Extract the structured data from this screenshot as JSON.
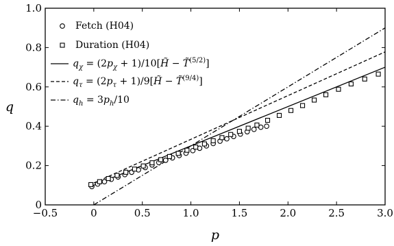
{
  "chart_data": {
    "type": "scatter",
    "title": "",
    "xlabel": "p",
    "ylabel": "q",
    "xlim": [
      -0.5,
      3.0
    ],
    "ylim": [
      0,
      1.0
    ],
    "x_ticks": [
      -0.5,
      0,
      0.5,
      1.0,
      1.5,
      2.0,
      2.5,
      3.0
    ],
    "x_tick_labels": [
      "−0.5",
      "0",
      "0.5",
      "1.0",
      "1.5",
      "2.0",
      "2.5",
      "3.0"
    ],
    "y_ticks": [
      0,
      0.2,
      0.4,
      0.6,
      0.8,
      1.0
    ],
    "y_tick_labels": [
      "0",
      "0.2",
      "0.4",
      "0.6",
      "0.8",
      "1.0"
    ],
    "grid": false,
    "legend_position": "top-left",
    "series": [
      {
        "name": "Fetch (H04)",
        "kind": "marker",
        "marker": "circle",
        "color": "#000000",
        "x": [
          -0.02,
          0.04,
          0.11,
          0.18,
          0.25,
          0.32,
          0.39,
          0.46,
          0.53,
          0.6,
          0.67,
          0.74,
          0.81,
          0.88,
          0.95,
          1.02,
          1.09,
          1.16,
          1.23,
          1.3,
          1.37,
          1.44,
          1.51,
          1.58,
          1.65,
          1.72,
          1.78
        ],
        "y": [
          0.093,
          0.106,
          0.118,
          0.13,
          0.142,
          0.154,
          0.166,
          0.178,
          0.19,
          0.203,
          0.215,
          0.227,
          0.239,
          0.251,
          0.263,
          0.276,
          0.288,
          0.3,
          0.312,
          0.324,
          0.336,
          0.348,
          0.36,
          0.372,
          0.384,
          0.395,
          0.4
        ]
      },
      {
        "name": "Duration (H04)",
        "kind": "marker",
        "marker": "square",
        "color": "#000000",
        "x": [
          -0.03,
          0.06,
          0.15,
          0.24,
          0.33,
          0.42,
          0.51,
          0.6,
          0.69,
          0.78,
          0.87,
          0.96,
          1.05,
          1.14,
          1.23,
          1.32,
          1.41,
          1.5,
          1.59,
          1.68,
          1.79,
          1.91,
          2.03,
          2.15,
          2.27,
          2.39,
          2.52,
          2.65,
          2.79,
          2.93
        ],
        "y": [
          0.103,
          0.118,
          0.134,
          0.15,
          0.166,
          0.182,
          0.198,
          0.214,
          0.23,
          0.246,
          0.262,
          0.278,
          0.294,
          0.31,
          0.326,
          0.342,
          0.358,
          0.374,
          0.39,
          0.406,
          0.43,
          0.455,
          0.48,
          0.505,
          0.533,
          0.56,
          0.588,
          0.615,
          0.64,
          0.665
        ]
      },
      {
        "name": "q_χ = (2p_χ + 1)/10[H̃ − T̃^(5/2)]",
        "kind": "line",
        "dash": "solid",
        "color": "#000000",
        "x": [
          0,
          3.0
        ],
        "y": [
          0.1,
          0.7
        ]
      },
      {
        "name": "q_τ = (2p_τ + 1)/9[H̃ − T̃^(9/4)]",
        "kind": "line",
        "dash": "dashed",
        "color": "#000000",
        "x": [
          0,
          3.0
        ],
        "y": [
          0.111,
          0.778
        ]
      },
      {
        "name": "q_h = 3p_h/10",
        "kind": "line",
        "dash": "dashdot",
        "color": "#000000",
        "x": [
          0,
          3.0
        ],
        "y": [
          0,
          0.9
        ]
      }
    ],
    "legend": [
      {
        "symbol": "circle",
        "parts": [
          {
            "t": "Fetch (H04)",
            "s": "n"
          }
        ]
      },
      {
        "symbol": "square",
        "parts": [
          {
            "t": "Duration (H04)",
            "s": "n"
          }
        ]
      },
      {
        "symbol": "solid",
        "parts": [
          {
            "t": "q",
            "s": "i"
          },
          {
            "t": "χ",
            "s": "sub"
          },
          {
            "t": " = (2",
            "s": "n"
          },
          {
            "t": "p",
            "s": "i"
          },
          {
            "t": "χ",
            "s": "sub"
          },
          {
            "t": " + 1)/10[",
            "s": "n"
          },
          {
            "t": "H̃",
            "s": "i"
          },
          {
            "t": " − ",
            "s": "n"
          },
          {
            "t": "T̃",
            "s": "i"
          },
          {
            "t": "(5/2)",
            "s": "sup"
          },
          {
            "t": "]",
            "s": "n"
          }
        ]
      },
      {
        "symbol": "dashed",
        "parts": [
          {
            "t": "q",
            "s": "i"
          },
          {
            "t": "τ",
            "s": "sub"
          },
          {
            "t": " = (2",
            "s": "n"
          },
          {
            "t": "p",
            "s": "i"
          },
          {
            "t": "τ",
            "s": "sub"
          },
          {
            "t": " + 1)/9[",
            "s": "n"
          },
          {
            "t": "H̃",
            "s": "i"
          },
          {
            "t": " − ",
            "s": "n"
          },
          {
            "t": "T̃",
            "s": "i"
          },
          {
            "t": "(9/4)",
            "s": "sup"
          },
          {
            "t": "]",
            "s": "n"
          }
        ]
      },
      {
        "symbol": "dashdot",
        "parts": [
          {
            "t": "q",
            "s": "i"
          },
          {
            "t": "h",
            "s": "sub"
          },
          {
            "t": " = 3",
            "s": "n"
          },
          {
            "t": "p",
            "s": "i"
          },
          {
            "t": "h",
            "s": "sub"
          },
          {
            "t": "/10",
            "s": "n"
          }
        ]
      }
    ]
  }
}
